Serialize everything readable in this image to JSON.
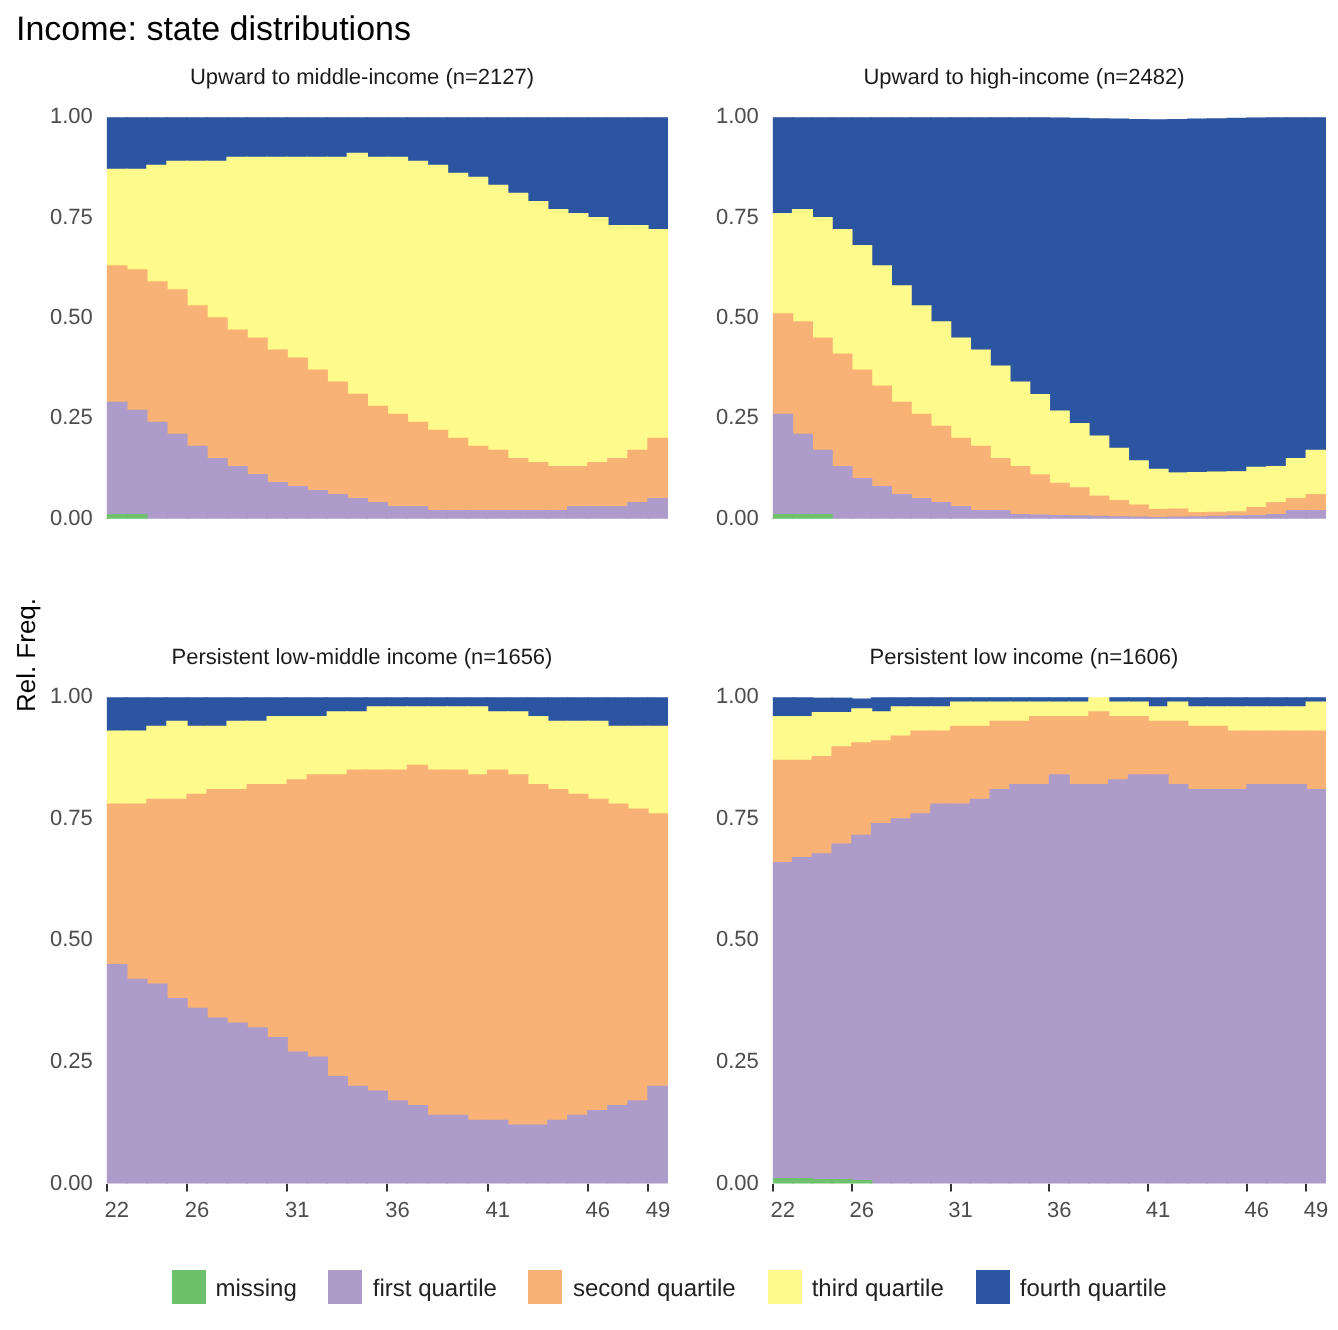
{
  "chart_data": [
    {
      "type": "bar",
      "stacked": true,
      "title": "Income: state distributions",
      "subtitle": "Upward to middle-income (n=2127)",
      "ylabel": "Rel. Freq.",
      "legend": "bottom",
      "tick_labels": "y",
      "grid": false,
      "categories": [
        "22",
        null,
        null,
        null,
        "26",
        null,
        null,
        null,
        null,
        "31",
        null,
        null,
        null,
        null,
        "36",
        null,
        null,
        null,
        null,
        "41",
        null,
        null,
        null,
        null,
        "46",
        null,
        null,
        "49"
      ],
      "ylim": [
        0,
        1
      ],
      "yticks": [
        {
          "value": 0,
          "label": "0.00"
        },
        {
          "value": 0.25,
          "label": "0.25"
        },
        {
          "value": 0.5,
          "label": "0.50"
        },
        {
          "value": 0.75,
          "label": "0.75"
        },
        {
          "value": 1,
          "label": "1.00"
        }
      ],
      "series": [
        {
          "name": "missing",
          "color": "#6cc16a",
          "values": [
            0.01,
            0.01,
            null,
            null,
            null,
            null,
            null,
            null,
            null,
            null,
            null,
            null,
            null,
            null,
            null,
            null,
            null,
            null,
            null,
            null,
            null,
            null,
            null,
            null,
            null,
            null,
            null,
            null
          ]
        },
        {
          "name": "first quartile",
          "color": "#ad9bca",
          "values": [
            0.28,
            0.26,
            0.24,
            0.21,
            0.18,
            0.15,
            0.13,
            0.11,
            0.09,
            0.08,
            0.07,
            0.06,
            0.05,
            0.04,
            0.03,
            0.03,
            0.02,
            0.02,
            0.02,
            0.02,
            0.02,
            0.02,
            0.02,
            0.03,
            0.03,
            0.03,
            0.04,
            0.05
          ]
        },
        {
          "name": "second quartile",
          "color": "#f9b275",
          "values": [
            0.34,
            0.35,
            0.35,
            0.36,
            0.35,
            0.35,
            0.34,
            0.34,
            0.33,
            0.32,
            0.3,
            0.28,
            0.26,
            0.24,
            0.23,
            0.21,
            0.2,
            0.18,
            0.16,
            0.15,
            0.13,
            0.12,
            0.11,
            0.1,
            0.11,
            0.12,
            0.13,
            0.15
          ]
        },
        {
          "name": "third quartile",
          "color": "#fefb8c",
          "values": [
            0.24,
            0.25,
            0.29,
            0.32,
            0.36,
            0.39,
            0.43,
            0.45,
            0.48,
            0.5,
            0.53,
            0.56,
            0.6,
            0.62,
            0.64,
            0.65,
            0.66,
            0.66,
            0.67,
            0.66,
            0.66,
            0.65,
            0.64,
            0.63,
            0.61,
            0.58,
            0.56,
            0.52
          ]
        },
        {
          "name": "fourth quartile",
          "color": "#2b55a0",
          "values": [
            0.13,
            0.13,
            0.12,
            0.11,
            0.11,
            0.11,
            0.1,
            0.1,
            0.1,
            0.1,
            0.1,
            0.1,
            0.09,
            0.1,
            0.1,
            0.11,
            0.12,
            0.14,
            0.15,
            0.17,
            0.19,
            0.21,
            0.23,
            0.24,
            0.25,
            0.27,
            0.27,
            0.28
          ]
        }
      ]
    },
    {
      "type": "bar",
      "stacked": true,
      "subtitle": "Upward to high-income (n=2482)",
      "tick_labels": "y",
      "grid": false,
      "categories": [
        "22",
        null,
        null,
        null,
        "26",
        null,
        null,
        null,
        null,
        "31",
        null,
        null,
        null,
        null,
        "36",
        null,
        null,
        null,
        null,
        "41",
        null,
        null,
        null,
        null,
        "46",
        null,
        null,
        "49"
      ],
      "ylim": [
        0,
        1
      ],
      "yticks": [
        {
          "value": 0,
          "label": "0.00"
        },
        {
          "value": 0.25,
          "label": "0.25"
        },
        {
          "value": 0.5,
          "label": "0.50"
        },
        {
          "value": 0.75,
          "label": "0.75"
        },
        {
          "value": 1,
          "label": "1.00"
        }
      ],
      "series": [
        {
          "color": "#6cc16a",
          "values": [
            0.01,
            0.01,
            0.01,
            null,
            null,
            null,
            null,
            null,
            null,
            null,
            null,
            null,
            null,
            null,
            null,
            null,
            null,
            null,
            null,
            null,
            null,
            null,
            null,
            null,
            null,
            null,
            null,
            null
          ]
        },
        {
          "color": "#ad9bca",
          "values": [
            0.25,
            0.2,
            0.16,
            0.13,
            0.1,
            0.08,
            0.06,
            0.05,
            0.04,
            0.03,
            0.02,
            0.02,
            0.01,
            0.009,
            0.008,
            0.007,
            0.006,
            0.005,
            0.004,
            0.003,
            0.004,
            0.005,
            0.006,
            0.007,
            0.008,
            0.01,
            0.02,
            0.02
          ]
        },
        {
          "color": "#f9b275",
          "values": [
            0.25,
            0.28,
            0.28,
            0.28,
            0.27,
            0.25,
            0.23,
            0.21,
            0.19,
            0.17,
            0.16,
            0.13,
            0.12,
            0.1,
            0.08,
            0.07,
            0.05,
            0.04,
            0.03,
            0.02,
            0.02,
            0.01,
            0.01,
            0.01,
            0.02,
            0.03,
            0.03,
            0.04
          ]
        },
        {
          "color": "#fefb8c",
          "values": [
            0.25,
            0.28,
            0.3,
            0.31,
            0.31,
            0.3,
            0.29,
            0.27,
            0.26,
            0.25,
            0.24,
            0.23,
            0.21,
            0.2,
            0.18,
            0.16,
            0.15,
            0.13,
            0.11,
            0.1,
            0.09,
            0.1,
            0.1,
            0.1,
            0.1,
            0.09,
            0.1,
            0.11
          ]
        },
        {
          "color": "#2b55a0",
          "values": [
            0.24,
            0.23,
            0.25,
            0.28,
            0.32,
            0.37,
            0.42,
            0.47,
            0.51,
            0.55,
            0.58,
            0.62,
            0.66,
            0.69,
            0.73,
            0.76,
            0.79,
            0.82,
            0.85,
            0.87,
            0.88,
            0.88,
            0.88,
            0.88,
            0.87,
            0.87,
            0.85,
            0.83
          ]
        }
      ]
    },
    {
      "type": "bar",
      "stacked": true,
      "subtitle": "Persistent low-middle income (n=1656)",
      "grid": false,
      "categories": [
        "22",
        null,
        null,
        null,
        "26",
        null,
        null,
        null,
        null,
        "31",
        null,
        null,
        null,
        null,
        "36",
        null,
        null,
        null,
        null,
        "41",
        null,
        null,
        null,
        null,
        "46",
        null,
        null,
        "49"
      ],
      "ylim": [
        0,
        1
      ],
      "yticks": [
        {
          "value": 0,
          "label": "0.00"
        },
        {
          "value": 0.25,
          "label": "0.25"
        },
        {
          "value": 0.5,
          "label": "0.50"
        },
        {
          "value": 0.75,
          "label": "0.75"
        },
        {
          "value": 1,
          "label": "1.00"
        }
      ],
      "series": [
        {
          "color": "#ad9bca",
          "values": [
            0.45,
            0.42,
            0.41,
            0.38,
            0.36,
            0.34,
            0.33,
            0.32,
            0.3,
            0.27,
            0.26,
            0.22,
            0.2,
            0.19,
            0.17,
            0.16,
            0.14,
            0.14,
            0.13,
            0.13,
            0.12,
            0.12,
            0.13,
            0.14,
            0.15,
            0.16,
            0.17,
            0.2
          ]
        },
        {
          "color": "#f9b275",
          "values": [
            0.33,
            0.36,
            0.38,
            0.41,
            0.44,
            0.47,
            0.48,
            0.5,
            0.52,
            0.56,
            0.58,
            0.62,
            0.65,
            0.66,
            0.68,
            0.7,
            0.71,
            0.71,
            0.71,
            0.72,
            0.72,
            0.7,
            0.68,
            0.66,
            0.64,
            0.62,
            0.6,
            0.56
          ]
        },
        {
          "color": "#fefb8c",
          "values": [
            0.15,
            0.15,
            0.15,
            0.16,
            0.14,
            0.13,
            0.14,
            0.13,
            0.14,
            0.13,
            0.12,
            0.13,
            0.12,
            0.13,
            0.13,
            0.12,
            0.13,
            0.13,
            0.14,
            0.12,
            0.13,
            0.14,
            0.14,
            0.15,
            0.16,
            0.16,
            0.17,
            0.18
          ]
        },
        {
          "color": "#2b55a0",
          "values": [
            0.07,
            0.07,
            0.06,
            0.05,
            0.06,
            0.06,
            0.05,
            0.05,
            0.04,
            0.04,
            0.04,
            0.03,
            0.03,
            0.02,
            0.02,
            0.02,
            0.02,
            0.02,
            0.02,
            0.03,
            0.03,
            0.04,
            0.05,
            0.05,
            0.05,
            0.06,
            0.06,
            0.06
          ]
        }
      ]
    },
    {
      "type": "bar",
      "stacked": true,
      "subtitle": "Persistent low income (n=1606)",
      "grid": false,
      "categories": [
        "22",
        null,
        null,
        null,
        "26",
        null,
        null,
        null,
        null,
        "31",
        null,
        null,
        null,
        null,
        "36",
        null,
        null,
        null,
        null,
        "41",
        null,
        null,
        null,
        null,
        "46",
        null,
        null,
        "49"
      ],
      "ylim": [
        0,
        1
      ],
      "yticks": [
        {
          "value": 0,
          "label": "0.00"
        },
        {
          "value": 0.25,
          "label": "0.25"
        },
        {
          "value": 0.5,
          "label": "0.50"
        },
        {
          "value": 0.75,
          "label": "0.75"
        },
        {
          "value": 1,
          "label": "1.00"
        }
      ],
      "series": [
        {
          "color": "#6cc16a",
          "values": [
            0.01,
            0.01,
            0.008,
            0.008,
            0.006,
            null,
            null,
            null,
            null,
            null,
            null,
            null,
            null,
            null,
            null,
            null,
            null,
            null,
            null,
            null,
            null,
            null,
            null,
            null,
            null,
            null,
            null,
            null
          ]
        },
        {
          "color": "#ad9bca",
          "values": [
            0.65,
            0.66,
            0.67,
            0.69,
            0.71,
            0.74,
            0.75,
            0.76,
            0.78,
            0.78,
            0.79,
            0.81,
            0.82,
            0.82,
            0.84,
            0.82,
            0.82,
            0.83,
            0.84,
            0.84,
            0.82,
            0.81,
            0.81,
            0.81,
            0.82,
            0.82,
            0.82,
            0.81
          ]
        },
        {
          "color": "#f9b275",
          "values": [
            0.21,
            0.2,
            0.2,
            0.2,
            0.19,
            0.17,
            0.17,
            0.17,
            0.15,
            0.16,
            0.15,
            0.14,
            0.13,
            0.14,
            0.12,
            0.14,
            0.15,
            0.13,
            0.12,
            0.11,
            0.13,
            0.13,
            0.13,
            0.12,
            0.11,
            0.11,
            0.11,
            0.12
          ]
        },
        {
          "color": "#fefb8c",
          "values": [
            0.09,
            0.09,
            0.09,
            0.07,
            0.07,
            0.06,
            0.06,
            0.05,
            0.05,
            0.05,
            0.05,
            0.04,
            0.04,
            0.03,
            0.03,
            0.03,
            0.03,
            0.03,
            0.03,
            0.03,
            0.04,
            0.04,
            0.04,
            0.05,
            0.05,
            0.05,
            0.05,
            0.06
          ]
        },
        {
          "color": "#2b55a0",
          "values": [
            0.04,
            0.04,
            0.03,
            0.03,
            0.02,
            0.03,
            0.02,
            0.02,
            0.02,
            0.01,
            0.01,
            0.01,
            0.01,
            0.01,
            0.01,
            0.01,
            null,
            0.01,
            0.01,
            0.02,
            0.01,
            0.02,
            0.02,
            0.02,
            0.02,
            0.02,
            0.02,
            0.01
          ]
        }
      ]
    }
  ]
}
